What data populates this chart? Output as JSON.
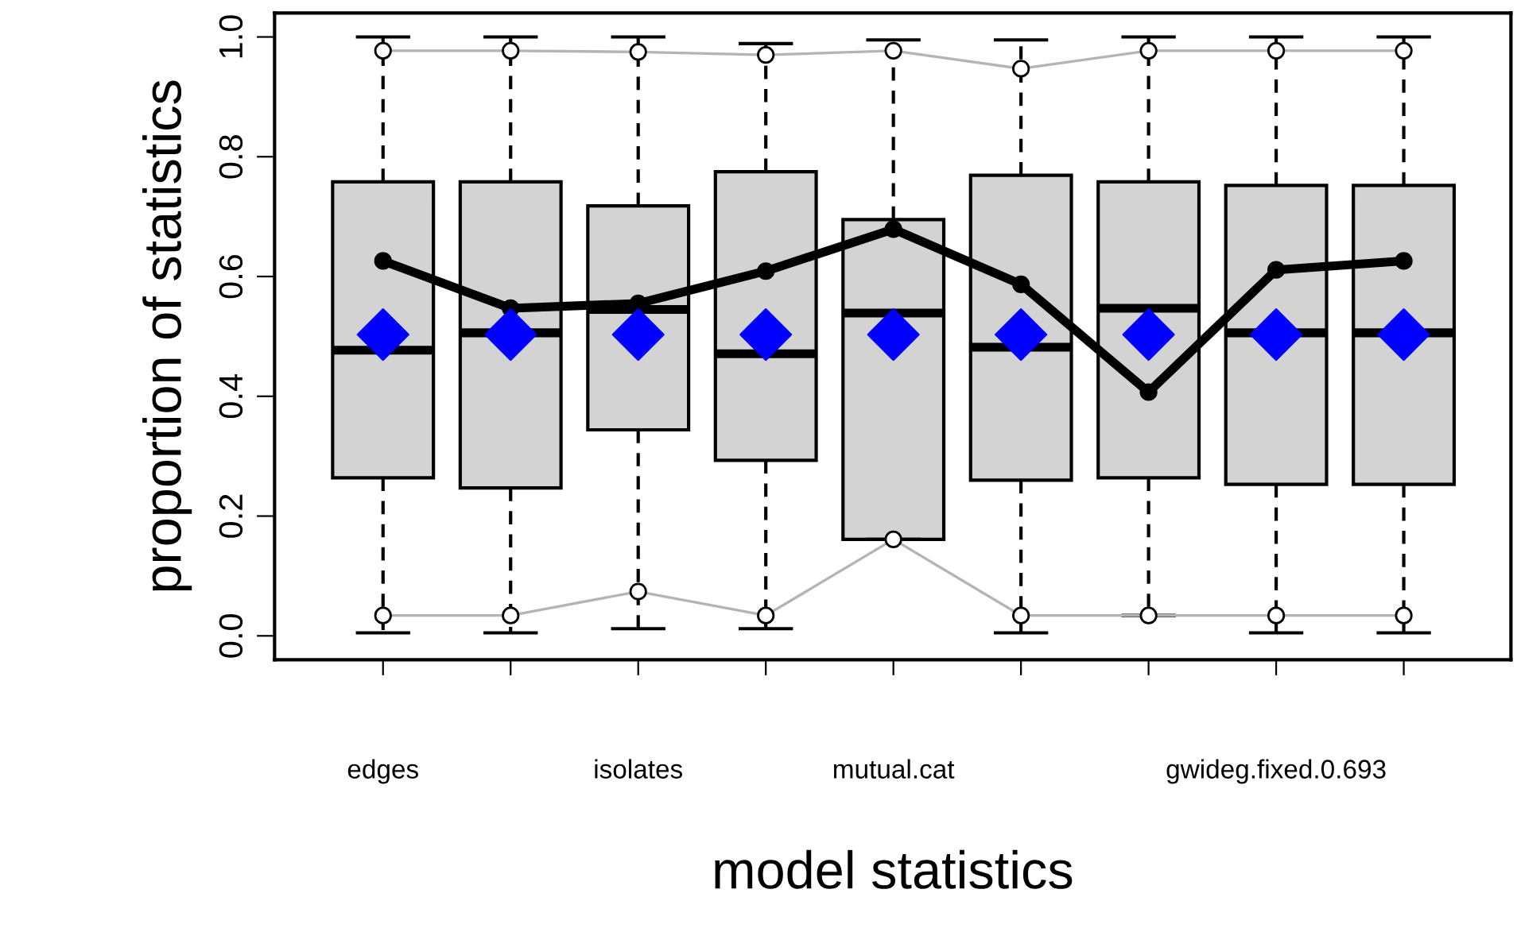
{
  "chart_data": {
    "type": "box",
    "xlabel": "model statistics",
    "ylabel": "proportion of statistics",
    "categories": [
      "edges",
      null,
      "isolates",
      null,
      "mutual.cat",
      null,
      null,
      "gwideg.fixed.0.693",
      null
    ],
    "series": [
      {
        "type": "box",
        "color": "#d3d3d3",
        "boxes": [
          {
            "low": 0.005,
            "q1": 0.264,
            "median": 0.477,
            "q3": 0.758,
            "high": 1.0
          },
          {
            "low": 0.005,
            "q1": 0.247,
            "median": 0.506,
            "q3": 0.758,
            "high": 1.0
          },
          {
            "low": 0.012,
            "q1": 0.344,
            "median": 0.545,
            "q3": 0.718,
            "high": 1.0
          },
          {
            "low": 0.012,
            "q1": 0.293,
            "median": 0.471,
            "q3": 0.775,
            "high": 0.989
          },
          {
            "low": 0.161,
            "q1": 0.161,
            "median": 0.539,
            "q3": 0.695,
            "high": 0.995
          },
          {
            "low": 0.005,
            "q1": 0.26,
            "median": 0.482,
            "q3": 0.769,
            "high": 0.995
          },
          {
            "low": 0.034,
            "q1": 0.264,
            "median": 0.547,
            "q3": 0.758,
            "high": 1.0
          },
          {
            "low": 0.005,
            "q1": 0.253,
            "median": 0.506,
            "q3": 0.752,
            "high": 1.0
          },
          {
            "low": 0.005,
            "q1": 0.253,
            "median": 0.506,
            "q3": 0.752,
            "high": 1.0
          }
        ]
      },
      {
        "type": "line",
        "color": "#b4b4b4",
        "marker": "circle",
        "values": [
          0.977,
          0.977,
          0.975,
          0.97,
          0.977,
          0.947,
          0.977,
          0.977,
          0.977
        ]
      },
      {
        "type": "line",
        "color": "#b4b4b4",
        "marker": "circle",
        "values": [
          0.034,
          0.034,
          0.074,
          0.034,
          0.161,
          0.034,
          0.034,
          0.034,
          0.034
        ]
      },
      {
        "type": "line",
        "color": "#000000",
        "marker": "circle",
        "values": [
          0.626,
          0.547,
          0.555,
          0.609,
          0.679,
          0.587,
          0.407,
          0.611,
          0.626
        ]
      },
      {
        "type": "scatter",
        "color": "#0000ff",
        "marker": "diamond",
        "values": [
          0.503,
          0.503,
          0.503,
          0.503,
          0.503,
          0.503,
          0.503,
          0.503,
          0.503
        ]
      }
    ],
    "ylim": [
      -0.04,
      1.04
    ],
    "yticks": [
      {
        "value": 0,
        "label": "0.0"
      },
      0.2,
      0.4,
      0.6,
      0.8,
      {
        "value": 1,
        "label": "1.0"
      }
    ],
    "grid": false,
    "legend": false
  }
}
